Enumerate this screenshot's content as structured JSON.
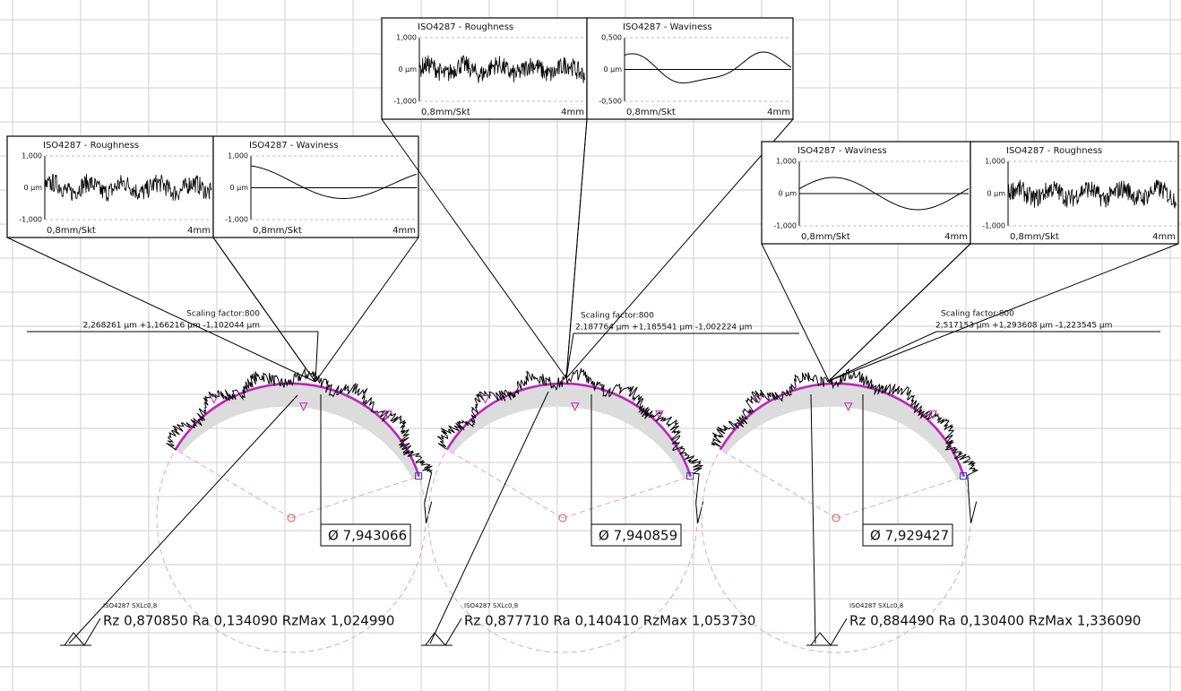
{
  "groups": [
    {
      "scaling": "Scaling factor:800",
      "values": "2,268261 µm +1,166216 µm -1,102044 µm",
      "diameter": "Ø 7,943066",
      "filter": "ISO4287 SXLc0,8",
      "result": "Rz 0,870850 Ra 0,134090 RzMax 1,024990",
      "insets": [
        {
          "title": "ISO4287 - Roughness",
          "ytop": "1,000",
          "ymid": "0 µm",
          "ybot": "-1,000",
          "scale": "0,8mm/Skt",
          "length": "4mm"
        },
        {
          "title": "ISO4287 - Waviness",
          "ytop": "1,000",
          "ymid": "0 µm",
          "ybot": "-1,000",
          "scale": "0,8mm/Skt",
          "length": "4mm"
        }
      ]
    },
    {
      "scaling": "Scaling factor:800",
      "values": "2,187764 µm +1,185541 µm -1,002224 µm",
      "diameter": "Ø 7,940859",
      "filter": "ISO4287 SXLc0,8",
      "result": "Rz 0,877710 Ra 0,140410 RzMax 1,053730",
      "insets": [
        {
          "title": "ISO4287 - Roughness",
          "ytop": "1,000",
          "ymid": "0 µm",
          "ybot": "-1,000",
          "scale": "0,8mm/Skt",
          "length": "4mm"
        },
        {
          "title": "ISO4287 - Waviness",
          "ytop": "0,500",
          "ymid": "0 µm",
          "ybot": "-0,500",
          "scale": "0,8mm/Skt",
          "length": "4mm"
        }
      ]
    },
    {
      "scaling": "Scaling factor:800",
      "values": "2,517153 µm +1,293608 µm -1,223545 µm",
      "diameter": "Ø 7,929427",
      "filter": "ISO4287 SXLc0,8",
      "result": "Rz 0,884490 Ra 0,130400 RzMax 1,336090",
      "insets": [
        {
          "title": "ISO4287 - Waviness",
          "ytop": "1,000",
          "ymid": "0 µm",
          "ybot": "-1,000",
          "scale": "0,8mm/Skt",
          "length": "4mm"
        },
        {
          "title": "ISO4287 - Roughness",
          "ytop": "1,000",
          "ymid": "0 µm",
          "ybot": "-1,000",
          "scale": "0,8mm/Skt",
          "length": "4mm"
        }
      ]
    }
  ]
}
